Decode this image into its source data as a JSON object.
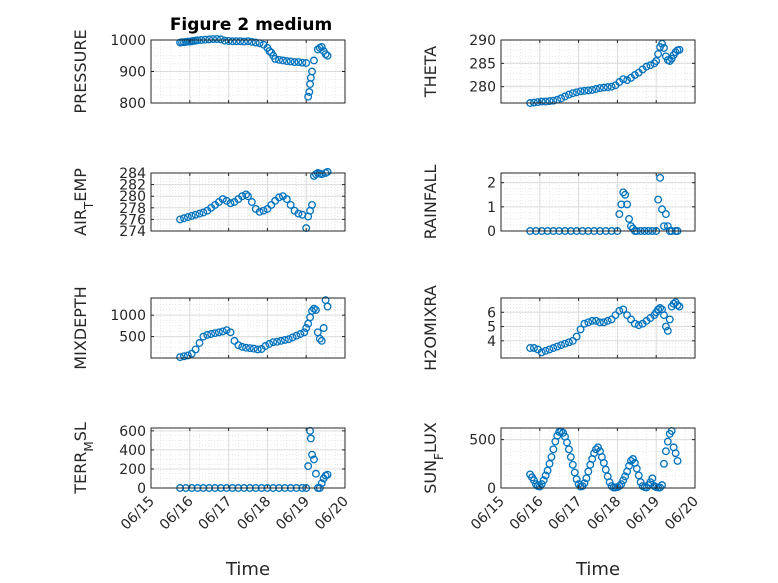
{
  "chart_data": {
    "type": "scatter",
    "title": "Figure 2 medium",
    "shared_x": {
      "label": "Time",
      "range": [
        0,
        5
      ],
      "ticks": [
        0,
        1,
        2,
        3,
        4,
        5
      ],
      "tick_labels": [
        "06/15",
        "06/16",
        "06/17",
        "06/18",
        "06/19",
        "06/20"
      ]
    },
    "marker_color": "#0072BD",
    "grid": true,
    "subplots": [
      {
        "id": "pressure",
        "ylabel": "PRESSURE",
        "ylim": [
          800,
          1000
        ],
        "yticks": [
          800,
          900,
          1000
        ],
        "x": [
          0.75,
          0.8,
          0.85,
          0.9,
          0.95,
          1.0,
          1.05,
          1.1,
          1.15,
          1.2,
          1.3,
          1.4,
          1.5,
          1.6,
          1.7,
          1.8,
          1.9,
          2.0,
          2.1,
          2.2,
          2.3,
          2.4,
          2.5,
          2.6,
          2.7,
          2.8,
          2.9,
          3.0,
          3.05,
          3.1,
          3.15,
          3.2,
          3.3,
          3.4,
          3.5,
          3.6,
          3.7,
          3.8,
          3.9,
          4.0,
          4.05,
          4.08,
          4.1,
          4.12,
          4.15,
          4.2,
          4.3,
          4.35,
          4.4,
          4.45,
          4.5,
          4.55
        ],
        "y": [
          992,
          993,
          993,
          994,
          995,
          995,
          996,
          997,
          998,
          999,
          1000,
          1001,
          1002,
          1003,
          1003,
          1002,
          998,
          997,
          996,
          996,
          996,
          995,
          996,
          994,
          992,
          990,
          985,
          975,
          965,
          960,
          950,
          940,
          937,
          935,
          933,
          932,
          930,
          930,
          928,
          927,
          820,
          835,
          860,
          880,
          900,
          935,
          970,
          975,
          978,
          965,
          955,
          950
        ]
      },
      {
        "id": "theta",
        "ylabel": "THETA",
        "ylim": [
          276.5,
          290
        ],
        "yticks": [
          280,
          285,
          290
        ],
        "x": [
          0.75,
          0.85,
          0.95,
          1.05,
          1.15,
          1.25,
          1.35,
          1.45,
          1.55,
          1.65,
          1.75,
          1.85,
          1.95,
          2.05,
          2.15,
          2.25,
          2.35,
          2.45,
          2.55,
          2.65,
          2.75,
          2.85,
          2.95,
          3.05,
          3.15,
          3.25,
          3.35,
          3.45,
          3.55,
          3.65,
          3.75,
          3.85,
          3.95,
          4.0,
          4.05,
          4.1,
          4.15,
          4.2,
          4.25,
          4.3,
          4.35,
          4.4,
          4.45,
          4.5,
          4.55,
          4.6
        ],
        "y": [
          276.5,
          276.6,
          276.7,
          276.8,
          276.8,
          276.9,
          277.0,
          277.2,
          277.5,
          277.9,
          278.3,
          278.6,
          278.8,
          279.0,
          279.1,
          279.2,
          279.3,
          279.5,
          279.7,
          279.8,
          279.9,
          280.0,
          280.3,
          281.0,
          281.6,
          281.4,
          281.9,
          282.5,
          283.0,
          283.7,
          284.3,
          284.6,
          285.0,
          285.5,
          287.0,
          288.5,
          289.2,
          288.3,
          286.5,
          285.7,
          285.5,
          286.0,
          286.8,
          287.4,
          287.8,
          287.9
        ]
      },
      {
        "id": "air_temp",
        "ylabel": "AIR_TEMP",
        "ylim": [
          274,
          284
        ],
        "yticks": [
          274,
          276,
          278,
          280,
          282,
          284
        ],
        "x": [
          0.75,
          0.85,
          0.95,
          1.05,
          1.15,
          1.25,
          1.35,
          1.45,
          1.55,
          1.65,
          1.75,
          1.85,
          1.95,
          2.05,
          2.15,
          2.25,
          2.35,
          2.45,
          2.5,
          2.6,
          2.7,
          2.8,
          2.9,
          3.0,
          3.1,
          3.2,
          3.3,
          3.4,
          3.5,
          3.6,
          3.7,
          3.8,
          3.9,
          4.0,
          4.05,
          4.1,
          4.15,
          4.2,
          4.25,
          4.3,
          4.35,
          4.4,
          4.5,
          4.55
        ],
        "y": [
          276.0,
          276.2,
          276.4,
          276.6,
          276.8,
          277.0,
          277.2,
          277.5,
          278.0,
          278.5,
          279.0,
          279.5,
          279.2,
          278.8,
          279.0,
          279.5,
          280.0,
          280.3,
          280.0,
          279.0,
          277.8,
          277.3,
          277.5,
          277.8,
          278.5,
          279.2,
          279.8,
          280.0,
          279.5,
          278.5,
          277.5,
          277.0,
          276.8,
          274.5,
          276.5,
          277.5,
          278.5,
          283.5,
          283.8,
          284.0,
          283.9,
          283.8,
          284.0,
          284.2
        ]
      },
      {
        "id": "rainfall",
        "ylabel": "RAINFALL",
        "ylim": [
          0,
          2.4
        ],
        "yticks": [
          0,
          1,
          2
        ],
        "x": [
          0.75,
          0.9,
          1.05,
          1.2,
          1.35,
          1.5,
          1.65,
          1.8,
          1.95,
          2.1,
          2.25,
          2.4,
          2.55,
          2.7,
          2.85,
          3.0,
          3.05,
          3.1,
          3.15,
          3.2,
          3.25,
          3.3,
          3.35,
          3.4,
          3.45,
          3.5,
          3.6,
          3.7,
          3.8,
          3.9,
          4.0,
          4.05,
          4.1,
          4.15,
          4.2,
          4.25,
          4.3,
          4.35,
          4.4,
          4.5,
          4.55
        ],
        "y": [
          0,
          0,
          0,
          0,
          0,
          0,
          0,
          0,
          0,
          0,
          0,
          0,
          0,
          0,
          0,
          0,
          0.7,
          1.1,
          1.6,
          1.5,
          1.1,
          0.5,
          0.2,
          0.1,
          0,
          0,
          0,
          0,
          0,
          0,
          0,
          1.3,
          2.2,
          0.9,
          0.2,
          0.7,
          0.2,
          0,
          0,
          0,
          0
        ]
      },
      {
        "id": "mixdepth",
        "ylabel": "MIXDEPTH",
        "ylim": [
          0,
          1400
        ],
        "yticks": [
          500,
          1000
        ],
        "x": [
          0.75,
          0.85,
          0.95,
          1.05,
          1.15,
          1.25,
          1.35,
          1.45,
          1.55,
          1.65,
          1.75,
          1.85,
          1.95,
          2.05,
          2.15,
          2.25,
          2.35,
          2.45,
          2.55,
          2.65,
          2.75,
          2.85,
          2.95,
          3.05,
          3.15,
          3.25,
          3.35,
          3.45,
          3.55,
          3.65,
          3.75,
          3.85,
          3.95,
          4.0,
          4.05,
          4.1,
          4.15,
          4.2,
          4.25,
          4.3,
          4.35,
          4.4,
          4.45,
          4.5,
          4.55
        ],
        "y": [
          20,
          40,
          60,
          100,
          200,
          350,
          500,
          540,
          560,
          580,
          600,
          620,
          650,
          600,
          400,
          300,
          260,
          240,
          230,
          220,
          200,
          210,
          280,
          330,
          370,
          380,
          400,
          420,
          440,
          480,
          520,
          560,
          600,
          700,
          800,
          950,
          1100,
          1150,
          1120,
          600,
          450,
          400,
          700,
          1350,
          1200
        ]
      },
      {
        "id": "h2omixra",
        "ylabel": "H2OMIXRA",
        "ylim": [
          2.8,
          7
        ],
        "yticks": [
          4,
          5,
          6
        ],
        "x": [
          0.75,
          0.85,
          0.95,
          1.05,
          1.15,
          1.25,
          1.35,
          1.45,
          1.55,
          1.65,
          1.75,
          1.85,
          1.95,
          2.05,
          2.15,
          2.25,
          2.35,
          2.45,
          2.55,
          2.65,
          2.75,
          2.85,
          2.95,
          3.05,
          3.15,
          3.25,
          3.35,
          3.45,
          3.55,
          3.65,
          3.75,
          3.85,
          3.95,
          4.0,
          4.05,
          4.1,
          4.15,
          4.2,
          4.25,
          4.3,
          4.35,
          4.4,
          4.45,
          4.5,
          4.55,
          4.6
        ],
        "y": [
          3.5,
          3.5,
          3.4,
          3.2,
          3.3,
          3.4,
          3.5,
          3.6,
          3.7,
          3.8,
          3.9,
          4.0,
          4.3,
          4.8,
          5.2,
          5.3,
          5.4,
          5.4,
          5.3,
          5.3,
          5.4,
          5.5,
          5.8,
          6.1,
          6.2,
          5.8,
          5.5,
          5.2,
          5.1,
          5.2,
          5.4,
          5.6,
          5.8,
          6.0,
          6.2,
          6.3,
          6.2,
          5.8,
          5.0,
          4.7,
          5.5,
          6.4,
          6.6,
          6.7,
          6.5,
          6.4
        ]
      },
      {
        "id": "terr_msl",
        "ylabel": "TERR_MSL",
        "ylim": [
          0,
          630
        ],
        "yticks": [
          0,
          200,
          400,
          600
        ],
        "x": [
          0.75,
          0.9,
          1.05,
          1.2,
          1.35,
          1.5,
          1.65,
          1.8,
          1.95,
          2.1,
          2.25,
          2.4,
          2.55,
          2.7,
          2.85,
          3.0,
          3.15,
          3.3,
          3.45,
          3.6,
          3.75,
          3.9,
          4.0,
          4.05,
          4.1,
          4.12,
          4.15,
          4.2,
          4.25,
          4.3,
          4.35,
          4.4,
          4.45,
          4.5,
          4.55
        ],
        "y": [
          0,
          0,
          0,
          0,
          0,
          0,
          0,
          0,
          0,
          0,
          0,
          0,
          0,
          0,
          0,
          0,
          0,
          0,
          0,
          0,
          0,
          0,
          0,
          230,
          600,
          520,
          350,
          300,
          150,
          0,
          0,
          50,
          100,
          130,
          140
        ]
      },
      {
        "id": "sun_flux",
        "ylabel": "SUN_FLUX",
        "ylim": [
          0,
          620
        ],
        "yticks": [
          0,
          500
        ],
        "x": [
          0.75,
          0.8,
          0.85,
          0.9,
          0.95,
          1.0,
          1.05,
          1.1,
          1.15,
          1.2,
          1.25,
          1.3,
          1.35,
          1.4,
          1.45,
          1.5,
          1.55,
          1.6,
          1.65,
          1.7,
          1.75,
          1.8,
          1.85,
          1.9,
          1.95,
          2.0,
          2.05,
          2.1,
          2.15,
          2.2,
          2.25,
          2.3,
          2.35,
          2.4,
          2.45,
          2.5,
          2.55,
          2.6,
          2.65,
          2.7,
          2.75,
          2.8,
          2.85,
          2.9,
          2.95,
          3.0,
          3.05,
          3.1,
          3.15,
          3.2,
          3.25,
          3.3,
          3.35,
          3.4,
          3.45,
          3.5,
          3.55,
          3.6,
          3.65,
          3.7,
          3.75,
          3.8,
          3.85,
          3.9,
          3.95,
          4.0,
          4.05,
          4.1,
          4.15,
          4.2,
          4.25,
          4.3,
          4.35,
          4.4,
          4.45,
          4.5,
          4.55
        ],
        "y": [
          140,
          110,
          80,
          40,
          20,
          15,
          40,
          80,
          130,
          180,
          250,
          320,
          400,
          480,
          540,
          580,
          585,
          570,
          530,
          470,
          400,
          320,
          240,
          160,
          90,
          40,
          15,
          20,
          50,
          100,
          170,
          240,
          300,
          360,
          400,
          420,
          380,
          320,
          260,
          190,
          120,
          60,
          20,
          5,
          5,
          10,
          20,
          40,
          80,
          120,
          170,
          230,
          280,
          300,
          260,
          200,
          130,
          60,
          20,
          10,
          5,
          30,
          60,
          100,
          20,
          10,
          5,
          5,
          30,
          250,
          380,
          480,
          560,
          590,
          420,
          360,
          280
        ]
      }
    ]
  }
}
